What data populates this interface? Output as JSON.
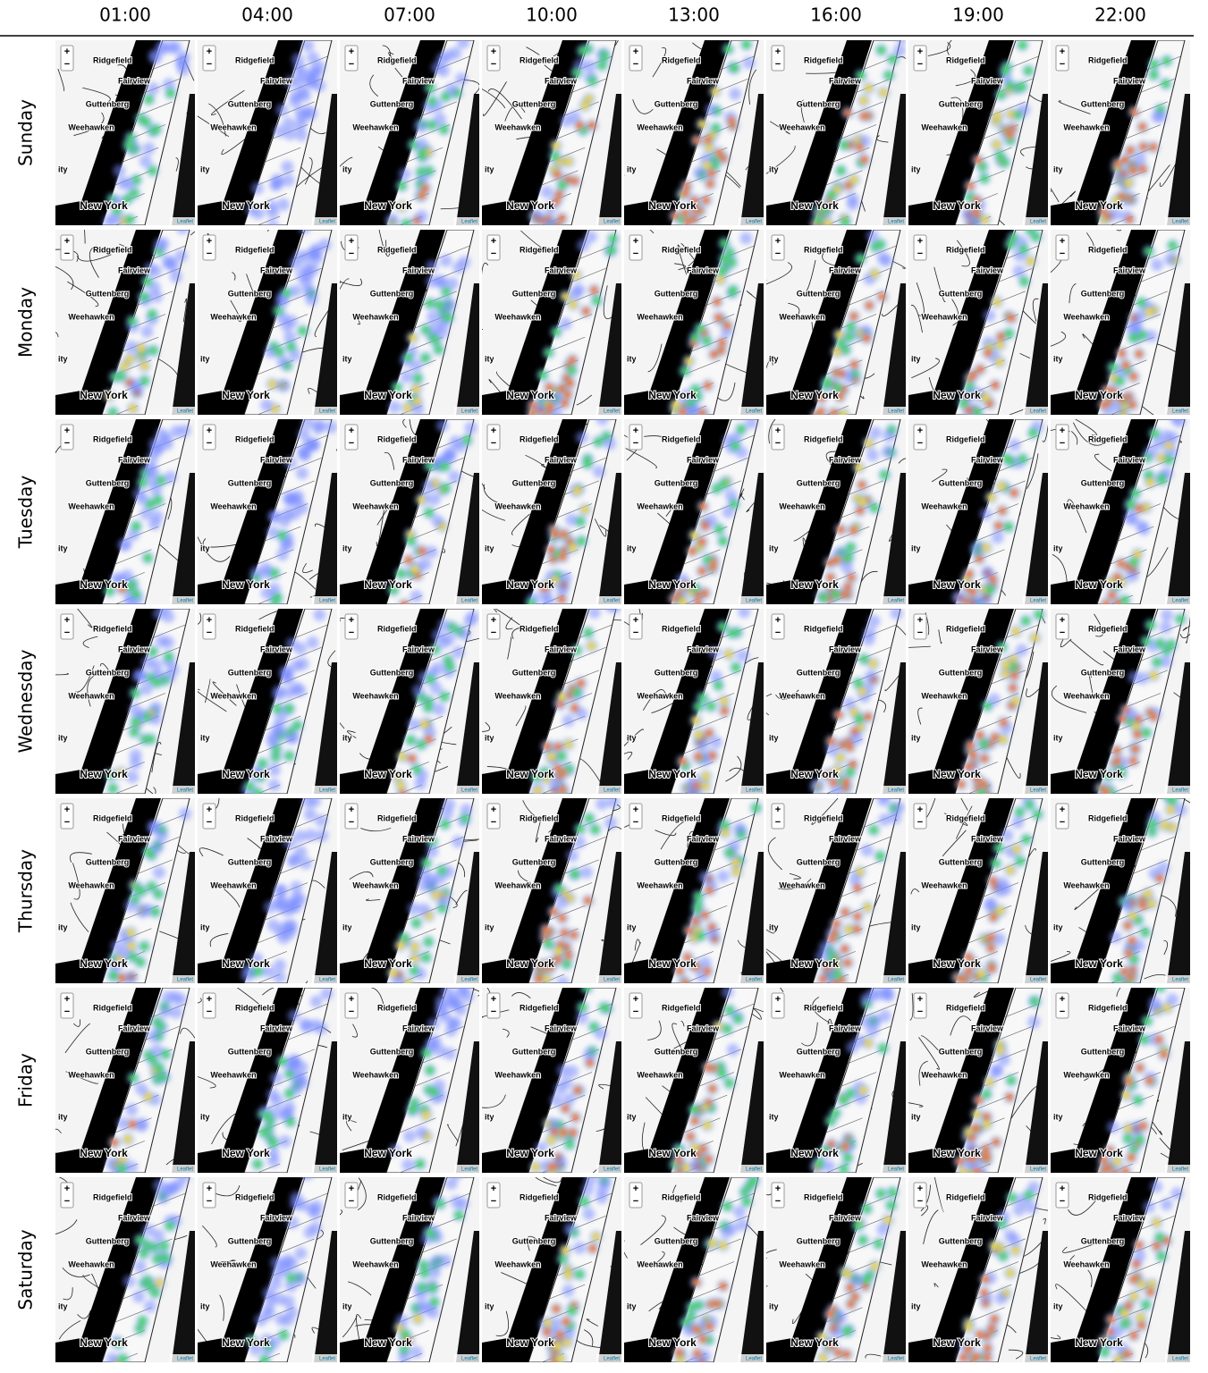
{
  "columns": [
    "01:00",
    "04:00",
    "07:00",
    "10:00",
    "13:00",
    "16:00",
    "19:00",
    "22:00"
  ],
  "rows": [
    "Sunday",
    "Monday",
    "Tuesday",
    "Wednesday",
    "Thursday",
    "Friday",
    "Saturday"
  ],
  "map_labels": {
    "zoom_in": "+",
    "zoom_out": "−",
    "places": [
      "Ridgefield",
      "Fairview",
      "Guttenberg",
      "Weehawken",
      "ity",
      "New York"
    ],
    "attribution": "Leaflet"
  }
}
